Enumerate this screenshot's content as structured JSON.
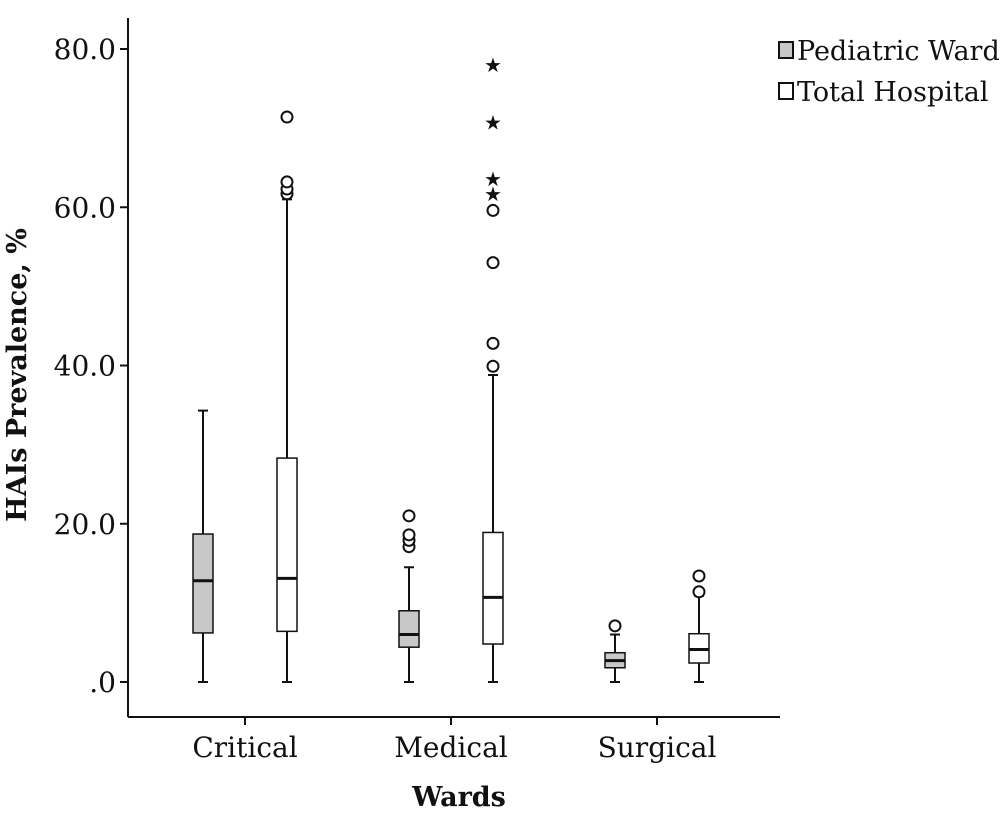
{
  "chart_data": {
    "type": "boxplot",
    "xlabel": "Wards",
    "ylabel": "HAIs Prevalence, %",
    "ylim": [
      0,
      80
    ],
    "yticks": [
      0,
      20,
      40,
      60,
      80
    ],
    "ytick_labels": [
      ".0",
      "20.0",
      "40.0",
      "60.0",
      "80.0"
    ],
    "categories": [
      "Critical",
      "Medical",
      "Surgical"
    ],
    "legend_position": "top-right",
    "series": [
      {
        "name": "Pediatric Ward",
        "color": "#c8c8c8",
        "boxes": [
          {
            "category": "Critical",
            "min": 0,
            "q1": 6.2,
            "median": 12.8,
            "q3": 18.7,
            "max": 34.3,
            "outliers": [],
            "extremes": []
          },
          {
            "category": "Medical",
            "min": 0,
            "q1": 4.4,
            "median": 6.0,
            "q3": 9.0,
            "max": 14.5,
            "outliers": [
              17.1,
              17.9,
              18.6,
              21.0
            ],
            "extremes": []
          },
          {
            "category": "Surgical",
            "min": 0,
            "q1": 1.8,
            "median": 2.7,
            "q3": 3.7,
            "max": 6.0,
            "outliers": [
              7.1
            ],
            "extremes": []
          }
        ]
      },
      {
        "name": "Total Hospital",
        "color": "#ffffff",
        "boxes": [
          {
            "category": "Critical",
            "min": 0,
            "q1": 6.4,
            "median": 13.1,
            "q3": 28.3,
            "max": 61.0,
            "outliers": [
              61.7,
              62.3,
              63.2,
              71.4
            ],
            "extremes": []
          },
          {
            "category": "Medical",
            "min": 0,
            "q1": 4.8,
            "median": 10.7,
            "q3": 18.9,
            "max": 38.8,
            "outliers": [
              39.9,
              42.8,
              53.0,
              59.6
            ],
            "extremes": [
              61.7,
              63.6,
              70.7,
              78.0
            ]
          },
          {
            "category": "Surgical",
            "min": 0,
            "q1": 2.4,
            "median": 4.1,
            "q3": 6.1,
            "max": 10.9,
            "outliers": [
              11.4,
              13.4
            ],
            "extremes": []
          }
        ]
      }
    ]
  }
}
